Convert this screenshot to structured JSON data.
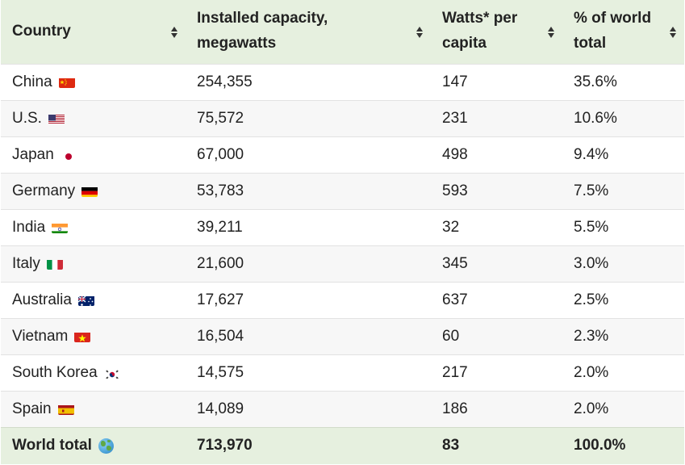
{
  "headers": {
    "country": "Country",
    "capacity_line1": "Installed capacity,",
    "capacity_line2": "megawatts",
    "watts_line1": "Watts* per",
    "watts_line2": "capita",
    "share_line1": "% of world",
    "share_line2": "total"
  },
  "rows": [
    {
      "country": "China",
      "capacity": "254,355",
      "watts": "147",
      "share": "35.6%",
      "flag": "flag-china-icon"
    },
    {
      "country": "U.S.",
      "capacity": "75,572",
      "watts": "231",
      "share": "10.6%",
      "flag": "flag-us-icon"
    },
    {
      "country": "Japan",
      "capacity": "67,000",
      "watts": "498",
      "share": "9.4%",
      "flag": "flag-japan-icon"
    },
    {
      "country": "Germany",
      "capacity": "53,783",
      "watts": "593",
      "share": "7.5%",
      "flag": "flag-germany-icon"
    },
    {
      "country": "India",
      "capacity": "39,211",
      "watts": "32",
      "share": "5.5%",
      "flag": "flag-india-icon"
    },
    {
      "country": "Italy",
      "capacity": "21,600",
      "watts": "345",
      "share": "3.0%",
      "flag": "flag-italy-icon"
    },
    {
      "country": "Australia",
      "capacity": "17,627",
      "watts": "637",
      "share": "2.5%",
      "flag": "flag-australia-icon"
    },
    {
      "country": "Vietnam",
      "capacity": "16,504",
      "watts": "60",
      "share": "2.3%",
      "flag": "flag-vietnam-icon"
    },
    {
      "country": "South Korea",
      "capacity": "14,575",
      "watts": "217",
      "share": "2.0%",
      "flag": "flag-south-korea-icon"
    },
    {
      "country": "Spain",
      "capacity": "14,089",
      "watts": "186",
      "share": "2.0%",
      "flag": "flag-spain-icon"
    }
  ],
  "total": {
    "country": "World total",
    "capacity": "713,970",
    "watts": "83",
    "share": "100.0%",
    "icon": "globe-icon"
  },
  "colors": {
    "header_bg": "#e6f0df",
    "stripe_bg": "#f7f7f7",
    "text": "#222222"
  }
}
